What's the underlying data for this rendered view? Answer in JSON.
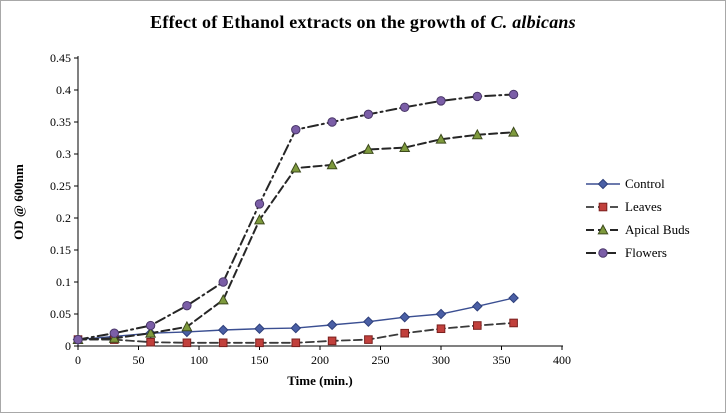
{
  "chart_data": {
    "type": "line",
    "title_prefix": "Effect of Ethanol extracts on the growth of ",
    "title_species": "C. albicans",
    "xlabel": "Time (min.)",
    "ylabel": "OD @ 600nm",
    "xlim": [
      0,
      400
    ],
    "ylim": [
      0,
      0.45
    ],
    "xtick_step": 50,
    "ytick_step": 0.05,
    "grid": false,
    "legend_position": "right",
    "background": "#ffffff",
    "axis_color": "#000000",
    "x": [
      0,
      30,
      60,
      90,
      120,
      150,
      180,
      210,
      240,
      270,
      300,
      330,
      360
    ],
    "series": [
      {
        "name": "Control",
        "marker": "diamond",
        "marker_color": "#4a5fa5",
        "marker_stroke": "#2e3f7a",
        "line_color": "#3b4f92",
        "line_width": 1.4,
        "dash": "solid",
        "values": [
          0.01,
          0.015,
          0.02,
          0.022,
          0.025,
          0.027,
          0.028,
          0.033,
          0.038,
          0.045,
          0.05,
          0.062,
          0.075
        ]
      },
      {
        "name": "Leaves",
        "marker": "square",
        "marker_color": "#c1403c",
        "marker_stroke": "#7a201e",
        "line_color": "#3a3a3a",
        "line_width": 1.8,
        "dash": "dashed",
        "values": [
          0.01,
          0.01,
          0.006,
          0.005,
          0.005,
          0.005,
          0.005,
          0.008,
          0.01,
          0.02,
          0.027,
          0.032,
          0.036
        ]
      },
      {
        "name": "Apical Buds",
        "marker": "triangle",
        "marker_color": "#7e9a3d",
        "marker_stroke": "#3d4a1d",
        "line_color": "#262626",
        "line_width": 2,
        "dash": "dashed",
        "values": [
          0.01,
          0.012,
          0.02,
          0.03,
          0.072,
          0.197,
          0.278,
          0.283,
          0.307,
          0.31,
          0.323,
          0.33,
          0.334
        ]
      },
      {
        "name": "Flowers",
        "marker": "circle",
        "marker_color": "#7b5ea7",
        "marker_stroke": "#493668",
        "line_color": "#262626",
        "line_width": 2,
        "dash": "dashdot",
        "values": [
          0.01,
          0.02,
          0.032,
          0.063,
          0.1,
          0.222,
          0.338,
          0.35,
          0.362,
          0.373,
          0.383,
          0.39,
          0.393
        ]
      }
    ]
  }
}
